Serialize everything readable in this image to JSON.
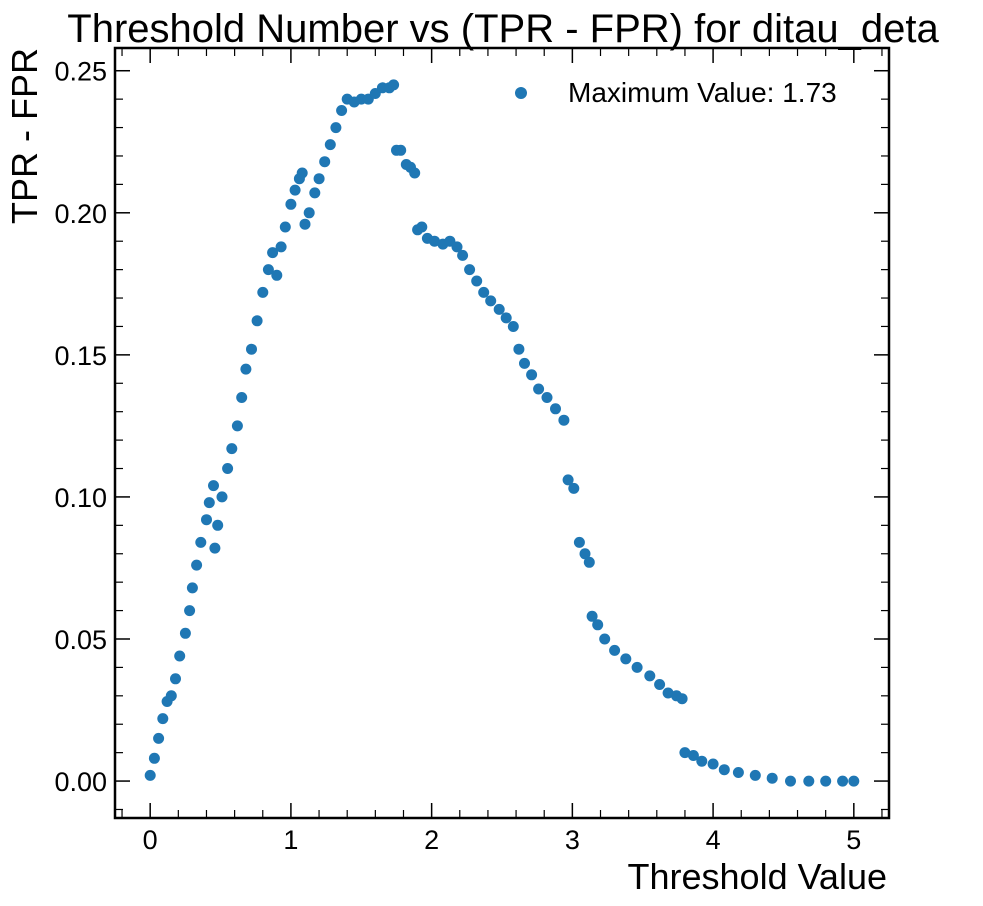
{
  "chart_data": {
    "type": "scatter",
    "title": "Threshold Number vs (TPR - FPR) for ditau_deta",
    "xlabel": "Threshold Value",
    "ylabel": "TPR - FPR",
    "xlim": [
      -0.25,
      5.25
    ],
    "ylim": [
      -0.013,
      0.258
    ],
    "x_ticks": [
      0,
      1,
      2,
      3,
      4,
      5
    ],
    "x_tick_labels": [
      "0",
      "1",
      "2",
      "3",
      "4",
      "5"
    ],
    "y_ticks": [
      0.0,
      0.05,
      0.1,
      0.15,
      0.2,
      0.25
    ],
    "y_tick_labels": [
      "0.00",
      "0.05",
      "0.10",
      "0.15",
      "0.20",
      "0.25"
    ],
    "grid": false,
    "legend": {
      "position": "top-right",
      "entries": [
        "Maximum Value: 1.73"
      ]
    },
    "marker_color": "#1f77b4",
    "series": [
      {
        "name": "Maximum Value: 1.73",
        "points": [
          [
            0.0,
            0.002
          ],
          [
            0.03,
            0.008
          ],
          [
            0.06,
            0.015
          ],
          [
            0.09,
            0.022
          ],
          [
            0.12,
            0.028
          ],
          [
            0.15,
            0.03
          ],
          [
            0.18,
            0.036
          ],
          [
            0.21,
            0.044
          ],
          [
            0.25,
            0.052
          ],
          [
            0.28,
            0.06
          ],
          [
            0.3,
            0.068
          ],
          [
            0.33,
            0.076
          ],
          [
            0.36,
            0.084
          ],
          [
            0.4,
            0.092
          ],
          [
            0.42,
            0.098
          ],
          [
            0.45,
            0.104
          ],
          [
            0.46,
            0.082
          ],
          [
            0.48,
            0.09
          ],
          [
            0.51,
            0.1
          ],
          [
            0.55,
            0.11
          ],
          [
            0.58,
            0.117
          ],
          [
            0.62,
            0.125
          ],
          [
            0.65,
            0.135
          ],
          [
            0.68,
            0.145
          ],
          [
            0.72,
            0.152
          ],
          [
            0.76,
            0.162
          ],
          [
            0.8,
            0.172
          ],
          [
            0.84,
            0.18
          ],
          [
            0.87,
            0.186
          ],
          [
            0.9,
            0.178
          ],
          [
            0.93,
            0.188
          ],
          [
            0.96,
            0.195
          ],
          [
            1.0,
            0.203
          ],
          [
            1.03,
            0.208
          ],
          [
            1.06,
            0.212
          ],
          [
            1.08,
            0.214
          ],
          [
            1.1,
            0.196
          ],
          [
            1.13,
            0.2
          ],
          [
            1.17,
            0.207
          ],
          [
            1.2,
            0.212
          ],
          [
            1.24,
            0.218
          ],
          [
            1.28,
            0.224
          ],
          [
            1.32,
            0.23
          ],
          [
            1.36,
            0.236
          ],
          [
            1.4,
            0.24
          ],
          [
            1.45,
            0.239
          ],
          [
            1.5,
            0.24
          ],
          [
            1.55,
            0.24
          ],
          [
            1.6,
            0.242
          ],
          [
            1.65,
            0.244
          ],
          [
            1.7,
            0.244
          ],
          [
            1.73,
            0.245
          ],
          [
            1.75,
            0.222
          ],
          [
            1.78,
            0.222
          ],
          [
            1.82,
            0.217
          ],
          [
            1.85,
            0.216
          ],
          [
            1.88,
            0.214
          ],
          [
            1.9,
            0.194
          ],
          [
            1.93,
            0.195
          ],
          [
            1.97,
            0.191
          ],
          [
            2.02,
            0.19
          ],
          [
            2.08,
            0.189
          ],
          [
            2.13,
            0.19
          ],
          [
            2.18,
            0.188
          ],
          [
            2.22,
            0.185
          ],
          [
            2.27,
            0.18
          ],
          [
            2.32,
            0.176
          ],
          [
            2.37,
            0.172
          ],
          [
            2.42,
            0.169
          ],
          [
            2.48,
            0.166
          ],
          [
            2.53,
            0.163
          ],
          [
            2.58,
            0.16
          ],
          [
            2.62,
            0.152
          ],
          [
            2.66,
            0.147
          ],
          [
            2.71,
            0.143
          ],
          [
            2.76,
            0.138
          ],
          [
            2.82,
            0.135
          ],
          [
            2.88,
            0.131
          ],
          [
            2.94,
            0.127
          ],
          [
            2.97,
            0.106
          ],
          [
            3.01,
            0.103
          ],
          [
            3.05,
            0.084
          ],
          [
            3.09,
            0.08
          ],
          [
            3.12,
            0.077
          ],
          [
            3.14,
            0.058
          ],
          [
            3.18,
            0.055
          ],
          [
            3.23,
            0.05
          ],
          [
            3.3,
            0.046
          ],
          [
            3.38,
            0.043
          ],
          [
            3.46,
            0.04
          ],
          [
            3.55,
            0.037
          ],
          [
            3.62,
            0.034
          ],
          [
            3.68,
            0.031
          ],
          [
            3.74,
            0.03
          ],
          [
            3.78,
            0.029
          ],
          [
            3.8,
            0.01
          ],
          [
            3.86,
            0.009
          ],
          [
            3.92,
            0.007
          ],
          [
            4.0,
            0.006
          ],
          [
            4.08,
            0.004
          ],
          [
            4.18,
            0.003
          ],
          [
            4.3,
            0.002
          ],
          [
            4.42,
            0.001
          ],
          [
            4.55,
            0.0
          ],
          [
            4.68,
            0.0
          ],
          [
            4.8,
            0.0
          ],
          [
            4.92,
            0.0
          ],
          [
            5.0,
            0.0
          ]
        ]
      }
    ]
  }
}
